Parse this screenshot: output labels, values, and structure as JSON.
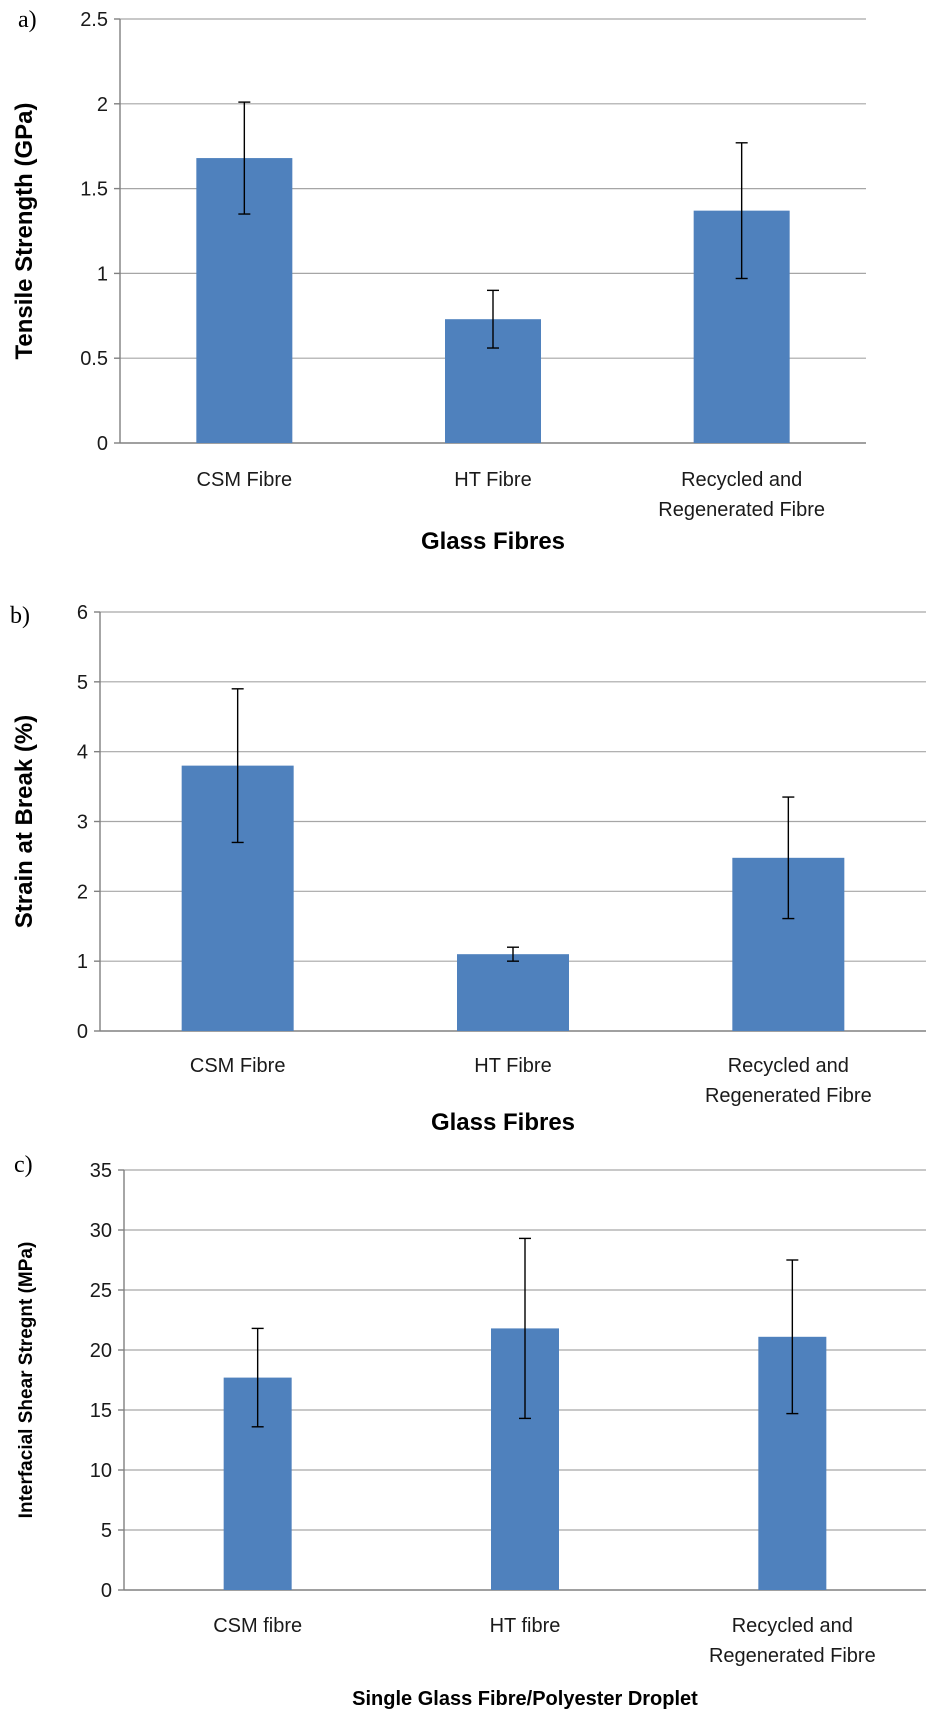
{
  "chart_data": [
    {
      "panel_label": "a)",
      "type": "bar",
      "categories": [
        "CSM Fibre",
        "HT Fibre",
        "Recycled and\nRegenerated Fibre"
      ],
      "values": [
        1.68,
        0.73,
        1.37
      ],
      "errors": [
        0.33,
        0.17,
        0.4
      ],
      "title": "",
      "xlabel": "Glass Fibres",
      "ylabel": "Tensile Strength (GPa)",
      "ylim": [
        0,
        2.5
      ],
      "yticks": [
        0,
        0.5,
        1,
        1.5,
        2,
        2.5
      ],
      "ytick_labels": [
        "0",
        "0.5",
        "1",
        "1.5",
        "2",
        "2.5"
      ],
      "grid": true,
      "bar_color": "#4f81bd"
    },
    {
      "panel_label": "b)",
      "type": "bar",
      "categories": [
        "CSM Fibre",
        "HT Fibre",
        "Recycled and\nRegenerated Fibre"
      ],
      "values": [
        3.8,
        1.1,
        2.48
      ],
      "errors": [
        1.1,
        0.1,
        0.87
      ],
      "title": "",
      "xlabel": "Glass Fibres",
      "ylabel": "Strain at Break (%)",
      "ylim": [
        0,
        6
      ],
      "yticks": [
        0,
        1,
        2,
        3,
        4,
        5,
        6
      ],
      "ytick_labels": [
        "0",
        "1",
        "2",
        "3",
        "4",
        "5",
        "6"
      ],
      "grid": true,
      "bar_color": "#4f81bd"
    },
    {
      "panel_label": "c)",
      "type": "bar",
      "categories": [
        "CSM fibre",
        "HT fibre",
        "Recycled and\nRegenerated Fibre"
      ],
      "values": [
        17.7,
        21.8,
        21.1
      ],
      "errors": [
        4.1,
        7.5,
        6.4
      ],
      "title": "",
      "xlabel": "Single Glass Fibre/Polyester Droplet",
      "ylabel": "Interfacial Shear Stregnt (MPa)",
      "ylim": [
        0,
        35
      ],
      "yticks": [
        0,
        5,
        10,
        15,
        20,
        25,
        30,
        35
      ],
      "ytick_labels": [
        "0",
        "5",
        "10",
        "15",
        "20",
        "25",
        "30",
        "35"
      ],
      "grid": true,
      "bar_color": "#4f81bd"
    }
  ]
}
